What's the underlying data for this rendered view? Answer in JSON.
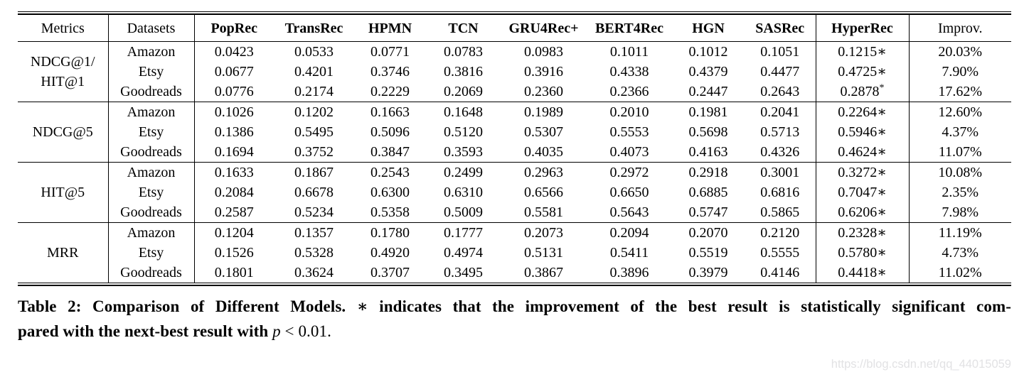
{
  "table": {
    "header": {
      "metrics": "Metrics",
      "datasets": "Datasets",
      "models": [
        "PopRec",
        "TransRec",
        "HPMN",
        "TCN",
        "GRU4Rec+",
        "BERT4Rec",
        "HGN",
        "SASRec",
        "HyperRec"
      ],
      "improv": "Improv."
    },
    "groups": [
      {
        "metric_lines": [
          "NDCG@1/",
          "HIT@1"
        ],
        "rows": [
          {
            "dataset": "Amazon",
            "values": [
              "0.0423",
              "0.0533",
              "0.0771",
              "0.0783",
              "0.0983",
              "0.1011",
              "0.1012",
              "0.1051"
            ],
            "best": "0.1215",
            "best_marker": "∗",
            "marker_superscript": false,
            "improv": "20.03%"
          },
          {
            "dataset": "Etsy",
            "values": [
              "0.0677",
              "0.4201",
              "0.3746",
              "0.3816",
              "0.3916",
              "0.4338",
              "0.4379",
              "0.4477"
            ],
            "best": "0.4725",
            "best_marker": "∗",
            "marker_superscript": false,
            "improv": "7.90%"
          },
          {
            "dataset": "Goodreads",
            "values": [
              "0.0776",
              "0.2174",
              "0.2229",
              "0.2069",
              "0.2360",
              "0.2366",
              "0.2447",
              "0.2643"
            ],
            "best": "0.2878",
            "best_marker": "*",
            "marker_superscript": true,
            "improv": "17.62%"
          }
        ]
      },
      {
        "metric_lines": [
          "NDCG@5"
        ],
        "rows": [
          {
            "dataset": "Amazon",
            "values": [
              "0.1026",
              "0.1202",
              "0.1663",
              "0.1648",
              "0.1989",
              "0.2010",
              "0.1981",
              "0.2041"
            ],
            "best": "0.2264",
            "best_marker": "∗",
            "marker_superscript": false,
            "improv": "12.60%"
          },
          {
            "dataset": "Etsy",
            "values": [
              "0.1386",
              "0.5495",
              "0.5096",
              "0.5120",
              "0.5307",
              "0.5553",
              "0.5698",
              "0.5713"
            ],
            "best": "0.5946",
            "best_marker": "∗",
            "marker_superscript": false,
            "improv": "4.37%"
          },
          {
            "dataset": "Goodreads",
            "values": [
              "0.1694",
              "0.3752",
              "0.3847",
              "0.3593",
              "0.4035",
              "0.4073",
              "0.4163",
              "0.4326"
            ],
            "best": "0.4624",
            "best_marker": "∗",
            "marker_superscript": false,
            "improv": "11.07%"
          }
        ]
      },
      {
        "metric_lines": [
          "HIT@5"
        ],
        "rows": [
          {
            "dataset": "Amazon",
            "values": [
              "0.1633",
              "0.1867",
              "0.2543",
              "0.2499",
              "0.2963",
              "0.2972",
              "0.2918",
              "0.3001"
            ],
            "best": "0.3272",
            "best_marker": "∗",
            "marker_superscript": false,
            "improv": "10.08%"
          },
          {
            "dataset": "Etsy",
            "values": [
              "0.2084",
              "0.6678",
              "0.6300",
              "0.6310",
              "0.6566",
              "0.6650",
              "0.6885",
              "0.6816"
            ],
            "best": "0.7047",
            "best_marker": "∗",
            "marker_superscript": false,
            "improv": "2.35%"
          },
          {
            "dataset": "Goodreads",
            "values": [
              "0.2587",
              "0.5234",
              "0.5358",
              "0.5009",
              "0.5581",
              "0.5643",
              "0.5747",
              "0.5865"
            ],
            "best": "0.6206",
            "best_marker": "∗",
            "marker_superscript": false,
            "improv": "7.98%"
          }
        ]
      },
      {
        "metric_lines": [
          "MRR"
        ],
        "rows": [
          {
            "dataset": "Amazon",
            "values": [
              "0.1204",
              "0.1357",
              "0.1780",
              "0.1777",
              "0.2073",
              "0.2094",
              "0.2070",
              "0.2120"
            ],
            "best": "0.2328",
            "best_marker": "∗",
            "marker_superscript": false,
            "improv": "11.19%"
          },
          {
            "dataset": "Etsy",
            "values": [
              "0.1526",
              "0.5328",
              "0.4920",
              "0.4974",
              "0.5131",
              "0.5411",
              "0.5519",
              "0.5555"
            ],
            "best": "0.5780",
            "best_marker": "∗",
            "marker_superscript": false,
            "improv": "4.73%"
          },
          {
            "dataset": "Goodreads",
            "values": [
              "0.1801",
              "0.3624",
              "0.3707",
              "0.3495",
              "0.3867",
              "0.3896",
              "0.3979",
              "0.4146"
            ],
            "best": "0.4418",
            "best_marker": "∗",
            "marker_superscript": false,
            "improv": "11.02%"
          }
        ]
      }
    ]
  },
  "caption": {
    "line1": "Table 2: Comparison of Different Models. ∗ indicates that the improvement of the best result is statistically significant com-",
    "line2_bold": "pared with the next-best result with ",
    "p_symbol": "p",
    "p_value": " < 0.01."
  },
  "watermark": "https://blog.csdn.net/qq_44015059",
  "colors": {
    "text": "#000000",
    "background": "#ffffff",
    "watermark": "#e2e2e4"
  }
}
